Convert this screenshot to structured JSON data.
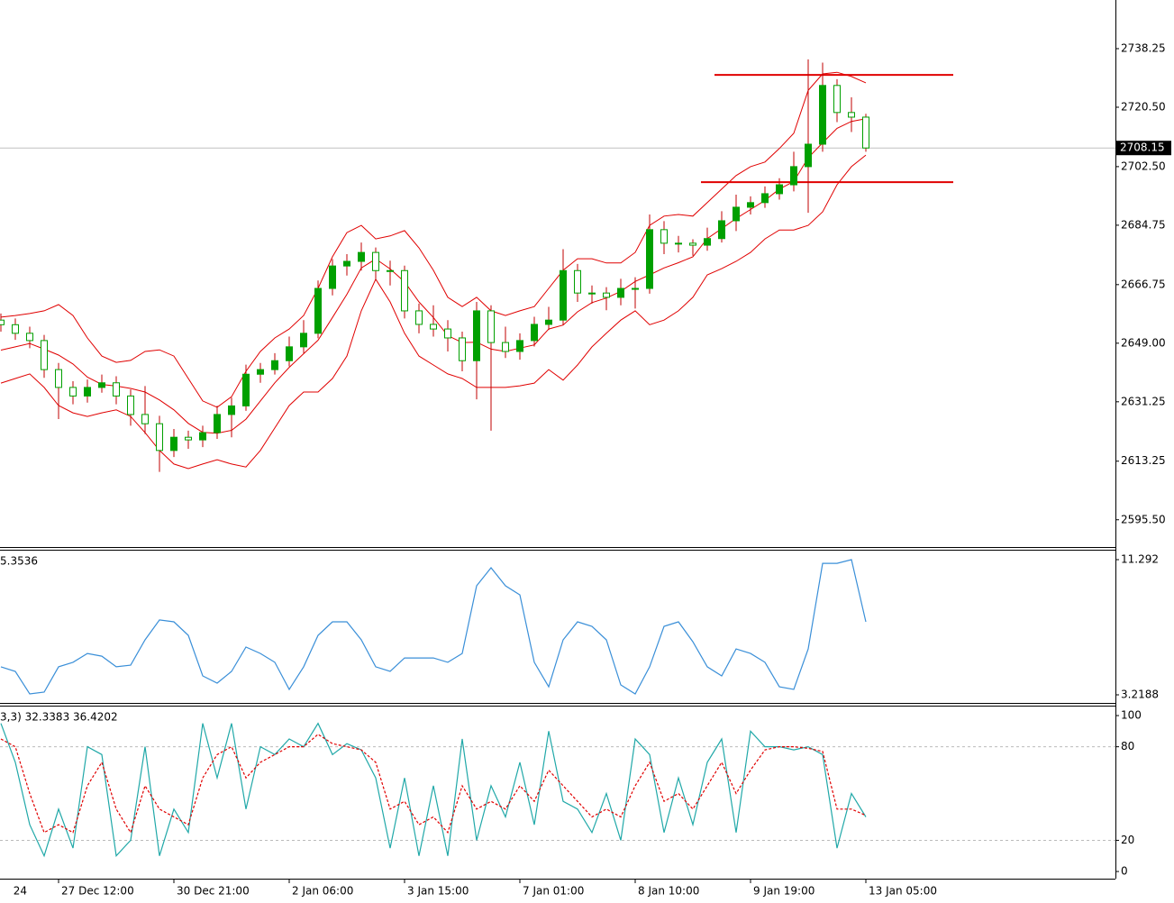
{
  "chart_data": [
    {
      "type": "candlestick",
      "open": [
        2656.0,
        2654.6,
        2652.0,
        2649.8,
        2641.0,
        2635.6,
        2633.0,
        2635.6,
        2637.0,
        2633.0,
        2627.4,
        2624.6,
        2616.5,
        2620.5,
        2619.7,
        2621.9,
        2627.4,
        2630.0,
        2639.6,
        2641.0,
        2643.7,
        2647.9,
        2652.0,
        2665.6,
        2672.4,
        2673.8,
        2676.5,
        2671.0,
        2671.0,
        2658.8,
        2654.7,
        2653.3,
        2650.6,
        2643.7,
        2658.8,
        2649.2,
        2646.5,
        2649.8,
        2654.7,
        2656.0,
        2671.0,
        2664.2,
        2664.2,
        2662.9,
        2665.6,
        2665.6,
        2683.4,
        2679.3,
        2679.3,
        2678.7,
        2680.7,
        2686.1,
        2690.2,
        2691.6,
        2694.3,
        2697.0,
        2702.5,
        2709.3,
        2727.1,
        2718.9,
        2717.5
      ],
      "high": [
        2658.0,
        2656.5,
        2654.0,
        2651.5,
        2643.0,
        2637.5,
        2638.0,
        2639.5,
        2639.0,
        2635.0,
        2636.0,
        2627.0,
        2623.0,
        2622.5,
        2624.0,
        2630.0,
        2632.5,
        2642.5,
        2643.0,
        2646.0,
        2651.0,
        2656.0,
        2668.0,
        2674.5,
        2676.0,
        2679.5,
        2678.0,
        2674.0,
        2672.5,
        2661.0,
        2660.5,
        2656.0,
        2652.5,
        2661.5,
        2660.5,
        2654.0,
        2652.0,
        2657.0,
        2660.0,
        2677.5,
        2673.0,
        2666.5,
        2666.0,
        2668.5,
        2669.0,
        2688.0,
        2686.0,
        2681.5,
        2680.5,
        2684.0,
        2689.0,
        2694.0,
        2693.5,
        2696.5,
        2699.0,
        2707.0,
        2735.0,
        2734.0,
        2729.0,
        2723.5,
        2718.5
      ],
      "low": [
        2652.5,
        2650.0,
        2647.5,
        2638.5,
        2626.0,
        2630.5,
        2631.0,
        2634.0,
        2630.5,
        2624.0,
        2621.5,
        2610.0,
        2614.5,
        2617.0,
        2617.5,
        2620.0,
        2620.5,
        2628.5,
        2637.0,
        2639.5,
        2642.0,
        2646.0,
        2650.5,
        2663.5,
        2669.5,
        2671.0,
        2668.0,
        2666.5,
        2656.5,
        2652.0,
        2651.0,
        2646.5,
        2640.5,
        2632.0,
        2622.5,
        2644.5,
        2644.0,
        2648.0,
        2653.0,
        2654.5,
        2661.5,
        2661.0,
        2659.0,
        2660.5,
        2659.5,
        2664.0,
        2676.0,
        2676.5,
        2675.5,
        2677.0,
        2679.5,
        2683.0,
        2688.0,
        2690.0,
        2692.5,
        2695.0,
        2688.5,
        2707.0,
        2716.0,
        2713.0,
        2707.0
      ],
      "close": [
        2654.6,
        2652.0,
        2649.8,
        2641.0,
        2635.6,
        2633.0,
        2635.6,
        2637.0,
        2633.0,
        2627.4,
        2624.6,
        2616.5,
        2620.5,
        2619.7,
        2621.9,
        2627.4,
        2630.0,
        2639.6,
        2641.0,
        2643.7,
        2647.9,
        2652.0,
        2665.6,
        2672.4,
        2673.8,
        2676.5,
        2671.0,
        2671.0,
        2658.8,
        2654.7,
        2653.3,
        2650.6,
        2643.7,
        2658.8,
        2649.2,
        2646.5,
        2649.8,
        2654.7,
        2656.0,
        2671.0,
        2664.2,
        2664.2,
        2662.9,
        2665.6,
        2665.6,
        2683.4,
        2679.3,
        2679.3,
        2678.7,
        2680.7,
        2686.1,
        2690.2,
        2691.6,
        2694.3,
        2697.0,
        2702.5,
        2709.3,
        2727.1,
        2718.9,
        2717.5,
        2708.15
      ],
      "bb_upper": [
        2656.9,
        2657.4,
        2658.0,
        2658.8,
        2660.7,
        2657.4,
        2650.6,
        2645.1,
        2643.2,
        2643.8,
        2646.5,
        2647.0,
        2645.1,
        2638.3,
        2631.5,
        2629.6,
        2632.8,
        2640.5,
        2646.5,
        2650.6,
        2653.3,
        2657.4,
        2665.6,
        2675.2,
        2682.5,
        2684.7,
        2680.6,
        2681.5,
        2683.1,
        2677.9,
        2671.1,
        2662.9,
        2660.1,
        2662.9,
        2658.8,
        2657.4,
        2658.8,
        2660.1,
        2665.6,
        2671.1,
        2674.6,
        2674.6,
        2673.3,
        2673.3,
        2676.5,
        2684.7,
        2687.5,
        2688.0,
        2687.5,
        2691.6,
        2695.7,
        2699.8,
        2702.5,
        2703.9,
        2708.0,
        2712.6,
        2725.6,
        2730.6,
        2731.1,
        2729.8,
        2727.9
      ],
      "bb_middle": [
        2646.9,
        2647.9,
        2648.9,
        2647.2,
        2645.4,
        2642.7,
        2638.7,
        2636.5,
        2636.0,
        2635.3,
        2634.2,
        2631.8,
        2628.8,
        2624.7,
        2622.0,
        2621.7,
        2622.6,
        2626.0,
        2631.5,
        2637.0,
        2641.7,
        2645.8,
        2649.9,
        2656.8,
        2663.8,
        2671.8,
        2674.5,
        2671.5,
        2667.6,
        2661.5,
        2656.8,
        2651.3,
        2649.2,
        2649.3,
        2647.2,
        2646.5,
        2647.5,
        2648.5,
        2653.3,
        2654.5,
        2658.5,
        2661.3,
        2662.7,
        2664.7,
        2667.7,
        2669.7,
        2671.8,
        2673.4,
        2675.2,
        2680.7,
        2683.7,
        2686.8,
        2689.5,
        2692.3,
        2695.7,
        2698.0,
        2705.2,
        2709.7,
        2714.1,
        2716.2,
        2717.0
      ],
      "bb_lower": [
        2636.9,
        2638.3,
        2639.7,
        2635.6,
        2630.1,
        2627.9,
        2626.8,
        2627.9,
        2628.8,
        2626.8,
        2621.9,
        2616.5,
        2612.4,
        2611.0,
        2612.4,
        2613.7,
        2612.4,
        2611.5,
        2616.5,
        2623.3,
        2630.1,
        2634.2,
        2634.2,
        2638.3,
        2645.1,
        2658.8,
        2668.4,
        2661.5,
        2652.0,
        2645.1,
        2642.4,
        2639.7,
        2638.3,
        2635.6,
        2635.6,
        2635.6,
        2636.1,
        2636.9,
        2641.0,
        2637.8,
        2642.4,
        2647.9,
        2652.0,
        2656.0,
        2658.8,
        2654.6,
        2656.0,
        2658.8,
        2662.9,
        2669.7,
        2671.6,
        2673.8,
        2676.5,
        2680.6,
        2683.3,
        2683.3,
        2684.7,
        2688.8,
        2697.0,
        2702.5,
        2706.0
      ],
      "levels": [
        2730.3,
        2697.8
      ],
      "last_price": 2708.15,
      "up_color": "#00a000",
      "down_color": "#ffffff",
      "outline_color": "#00a000",
      "wick_color": "#c00000",
      "band_color": "#e00000",
      "level_color": "#e00000",
      "ylim": [
        2587.24,
        2752.99
      ],
      "yticks": [
        2738.25,
        {
          "value": 2720.5,
          "label": "2720.50"
        },
        {
          "value": 2702.5,
          "label": "2702.50"
        },
        2684.75,
        2666.75,
        {
          "value": 2649.0,
          "label": "2649.00"
        },
        2631.25,
        2613.25,
        {
          "value": 2595.5,
          "label": "2595.50"
        }
      ]
    },
    {
      "type": "line",
      "title": "5.3536",
      "color": "#3a8fd8",
      "values": [
        4.89,
        4.62,
        3.27,
        3.38,
        4.89,
        5.16,
        5.69,
        5.53,
        4.89,
        4.99,
        6.5,
        7.69,
        7.58,
        6.77,
        4.35,
        3.92,
        4.62,
        6.07,
        5.69,
        5.16,
        3.54,
        4.89,
        6.77,
        7.58,
        7.58,
        6.5,
        4.89,
        4.62,
        5.42,
        5.42,
        5.42,
        5.16,
        5.69,
        9.73,
        10.81,
        9.73,
        9.19,
        5.16,
        3.7,
        6.5,
        7.58,
        7.31,
        6.5,
        3.81,
        3.27,
        4.89,
        7.31,
        7.58,
        6.39,
        4.89,
        4.35,
        5.96,
        5.69,
        5.16,
        3.7,
        3.54,
        5.96,
        11.07,
        11.07,
        11.29,
        7.58
      ],
      "ylim": [
        2.734,
        11.83
      ],
      "yticks": [
        11.292,
        3.2188
      ]
    },
    {
      "type": "line",
      "title": "3,3) 32.3383 36.4202",
      "series": [
        {
          "color": "#20a8a8",
          "values": [
            95,
            70,
            30,
            10,
            40,
            15,
            80,
            75,
            10,
            20,
            80,
            10,
            40,
            25,
            95,
            60,
            95,
            40,
            80,
            75,
            85,
            80,
            95,
            75,
            82,
            78,
            60,
            15,
            60,
            10,
            55,
            10,
            85,
            20,
            55,
            35,
            70,
            30,
            90,
            45,
            40,
            25,
            50,
            20,
            85,
            75,
            25,
            60,
            30,
            70,
            85,
            25,
            90,
            80,
            80,
            78,
            80,
            75,
            15,
            50,
            35
          ]
        },
        {
          "color": "#e00000",
          "dashed": true,
          "values": [
            85,
            80,
            50,
            25,
            30,
            25,
            55,
            70,
            40,
            25,
            55,
            40,
            35,
            30,
            60,
            75,
            80,
            60,
            70,
            75,
            80,
            80,
            88,
            82,
            80,
            78,
            70,
            40,
            45,
            30,
            35,
            25,
            55,
            40,
            45,
            40,
            55,
            45,
            65,
            55,
            45,
            35,
            40,
            35,
            55,
            70,
            45,
            50,
            40,
            55,
            70,
            50,
            65,
            78,
            80,
            80,
            79,
            77,
            40,
            40,
            36
          ]
        }
      ],
      "dashed_levels": [
        80,
        20
      ],
      "ylim": [
        -4.6,
        105.8
      ],
      "yticks": [
        100,
        80,
        20,
        0
      ],
      "clipped_x_label": "24",
      "categories": [
        null,
        null,
        null,
        null,
        "27 Dec 12:00",
        null,
        null,
        null,
        null,
        null,
        null,
        null,
        "30 Dec 21:00",
        null,
        null,
        null,
        null,
        null,
        null,
        null,
        "2 Jan 06:00",
        null,
        null,
        null,
        null,
        null,
        null,
        null,
        "3 Jan 15:00",
        null,
        null,
        null,
        null,
        null,
        null,
        null,
        "7 Jan 01:00",
        null,
        null,
        null,
        null,
        null,
        null,
        null,
        "8 Jan 10:00",
        null,
        null,
        null,
        null,
        null,
        null,
        null,
        "9 Jan 19:00",
        null,
        null,
        null,
        null,
        null,
        null,
        null,
        "13 Jan 05:00"
      ]
    }
  ]
}
